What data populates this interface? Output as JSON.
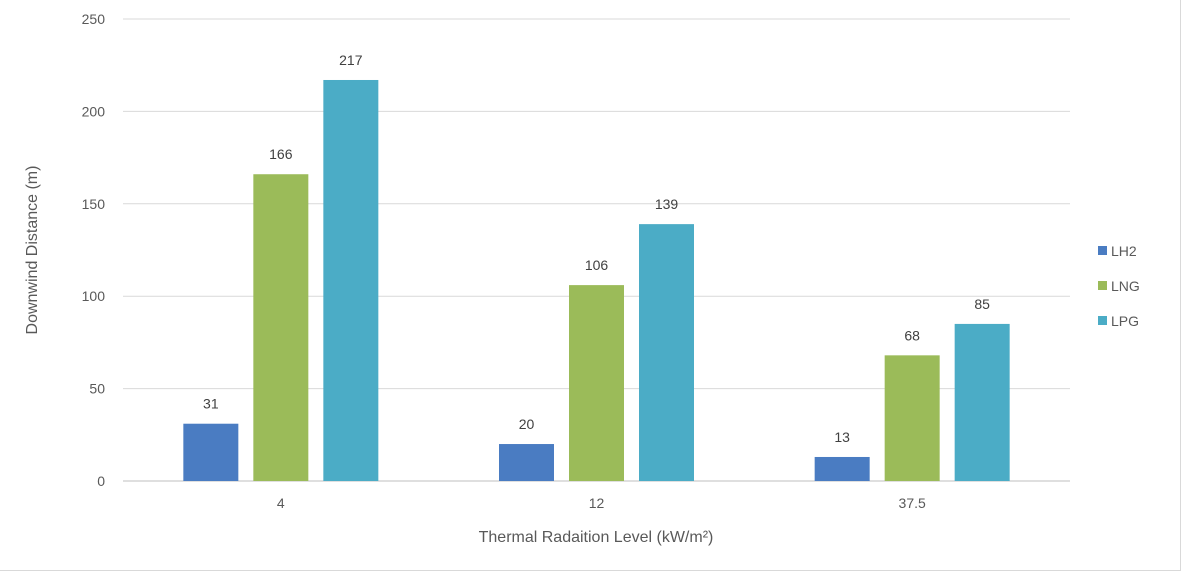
{
  "chart_data": {
    "type": "bar",
    "title": "",
    "xlabel": "Thermal Radaition Level (kW/m²)",
    "ylabel": "Downwind Distance (m)",
    "categories": [
      "4",
      "12",
      "37.5"
    ],
    "series": [
      {
        "name": "LH2",
        "values": [
          31,
          20,
          13
        ],
        "color": "#4a7cc2"
      },
      {
        "name": "LNG",
        "values": [
          166,
          106,
          68
        ],
        "color": "#9bbb59"
      },
      {
        "name": "LPG",
        "values": [
          217,
          139,
          85
        ],
        "color": "#4bacc6"
      }
    ],
    "ylim": [
      0,
      250
    ],
    "yticks": [
      0,
      50,
      100,
      150,
      200,
      250
    ],
    "grid": true,
    "legend": "right",
    "data_labels": true
  }
}
